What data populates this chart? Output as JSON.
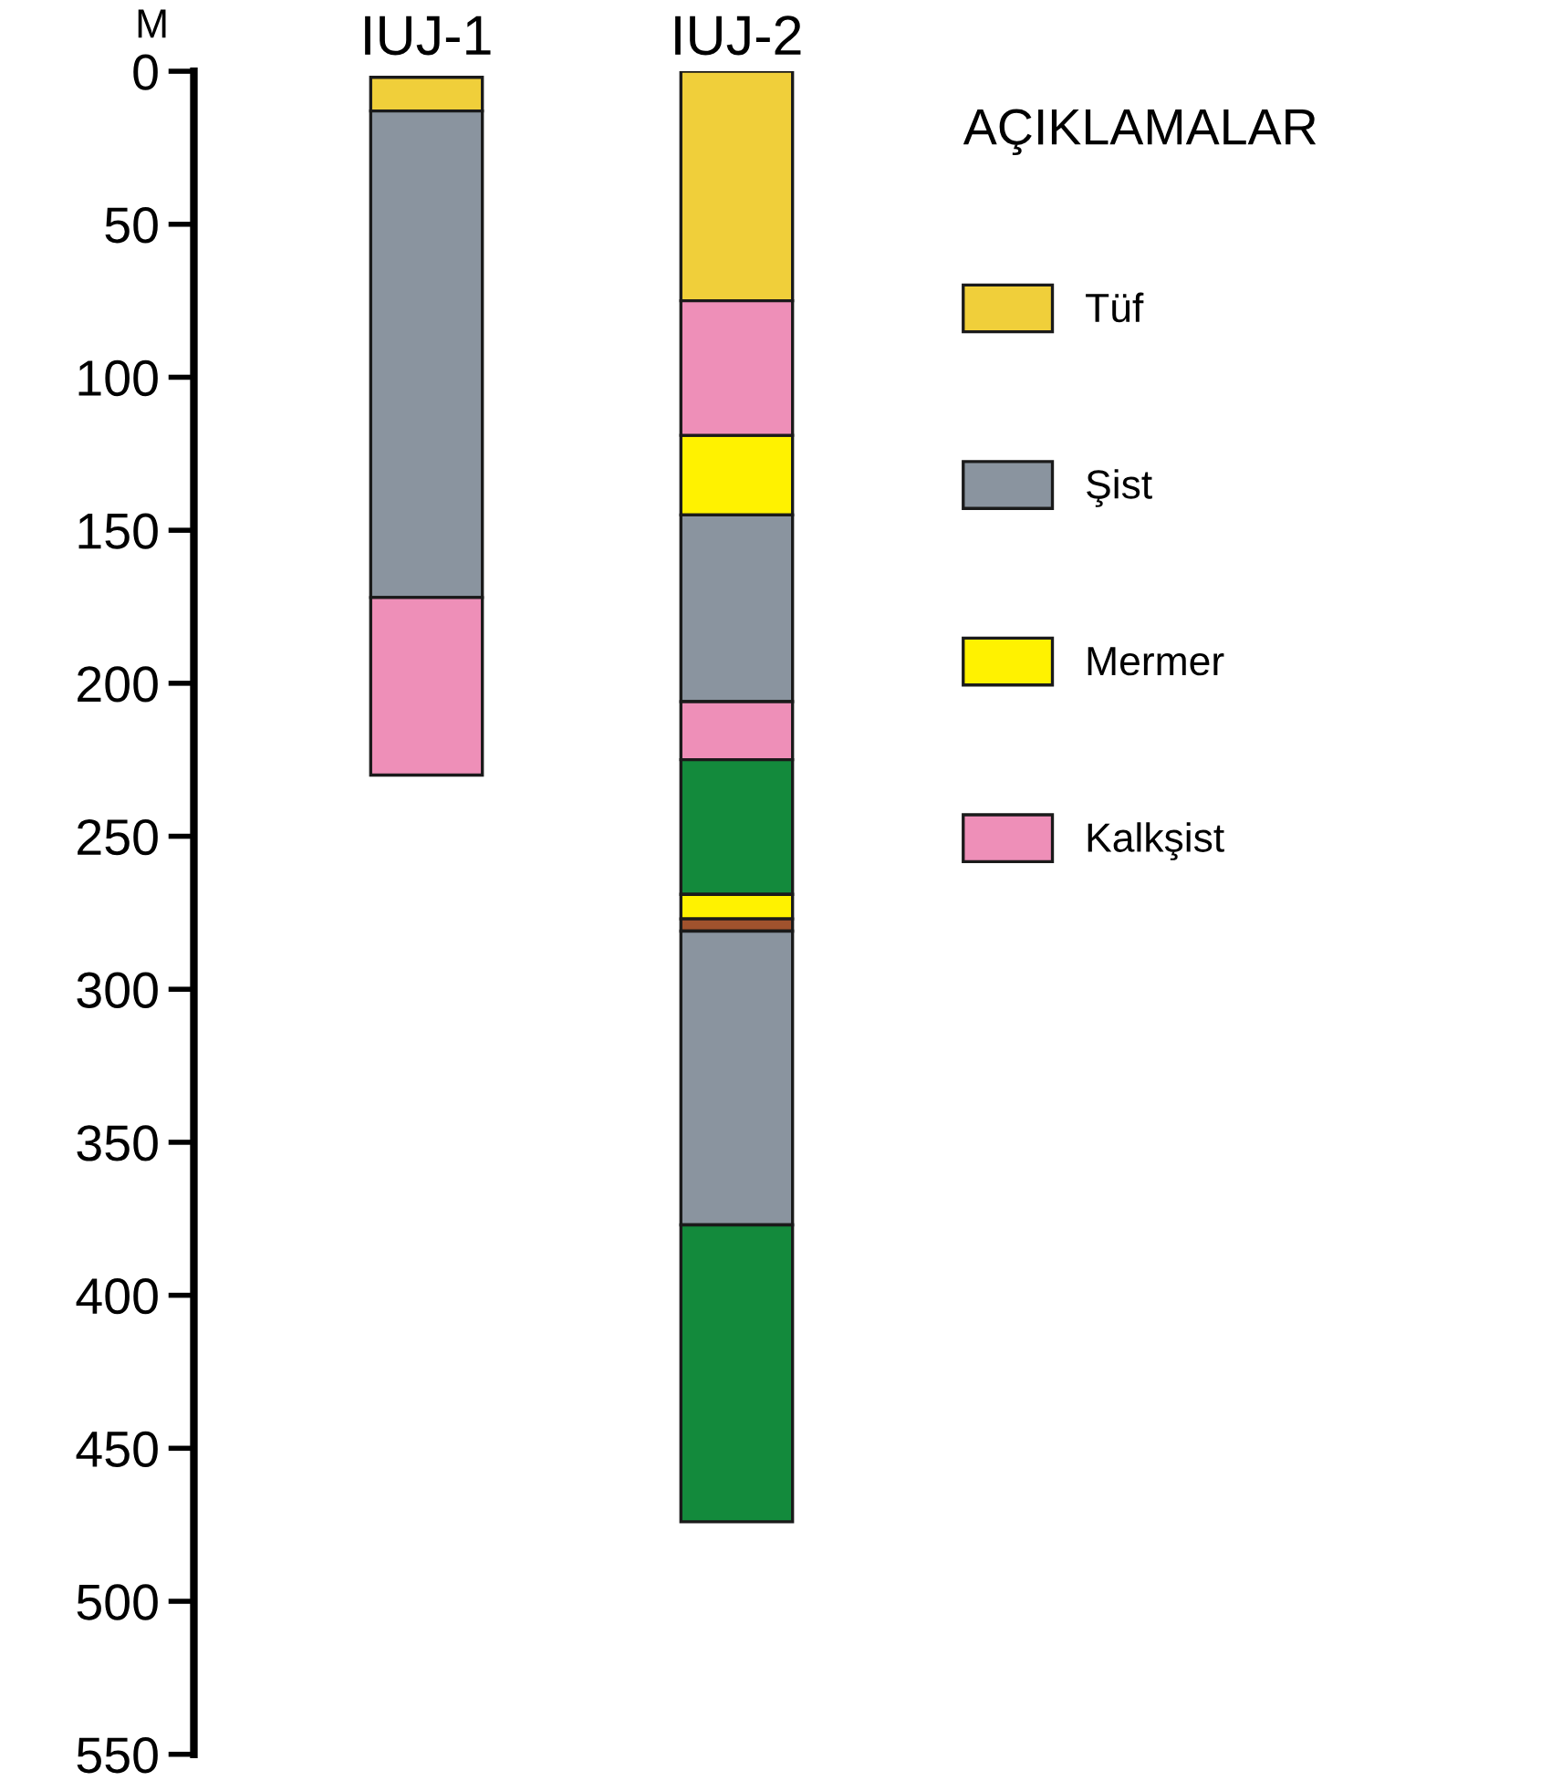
{
  "chart_data": {
    "type": "bar",
    "categories": [
      "IUJ-1",
      "IUJ-2"
    ],
    "ylabel": "M",
    "legend_title": "AÇIKLAMALAR",
    "legend": "right",
    "ylim": [
      550,
      0
    ],
    "yticks": [
      0,
      50,
      100,
      150,
      200,
      250,
      300,
      350,
      400,
      450,
      500,
      550
    ],
    "grid": false,
    "series": [
      {
        "name": "Tüf",
        "color": "#f0cf3a",
        "base": [
          2,
          0
        ],
        "values": [
          11,
          75
        ]
      },
      {
        "name": "Şist",
        "color": "#8a949f",
        "base": [
          13,
          null
        ],
        "values": [
          159,
          null
        ]
      },
      {
        "name": "Mermer",
        "color": "#fff200",
        "base": [
          null,
          119
        ],
        "values": [
          null,
          26
        ]
      },
      {
        "name": "Kalkşist",
        "color": "#ee8fb8",
        "base": [
          172,
          75
        ],
        "values": [
          58,
          44
        ]
      },
      {
        "color": "#8a949f",
        "base": [
          null,
          145
        ],
        "values": [
          null,
          61
        ]
      },
      {
        "color": "#ee8fb8",
        "base": [
          null,
          206
        ],
        "values": [
          null,
          19
        ]
      },
      {
        "color": "#138a3c",
        "base": [
          null,
          225
        ],
        "values": [
          null,
          44
        ]
      },
      {
        "color": "#fff200",
        "base": [
          null,
          269
        ],
        "values": [
          null,
          8
        ]
      },
      {
        "color": "#a0522d",
        "base": [
          null,
          277
        ],
        "values": [
          null,
          4
        ]
      },
      {
        "color": "#8a949f",
        "base": [
          null,
          281
        ],
        "values": [
          null,
          96
        ]
      },
      {
        "color": "#138a3c",
        "base": [
          null,
          377
        ],
        "values": [
          null,
          97
        ]
      }
    ]
  }
}
